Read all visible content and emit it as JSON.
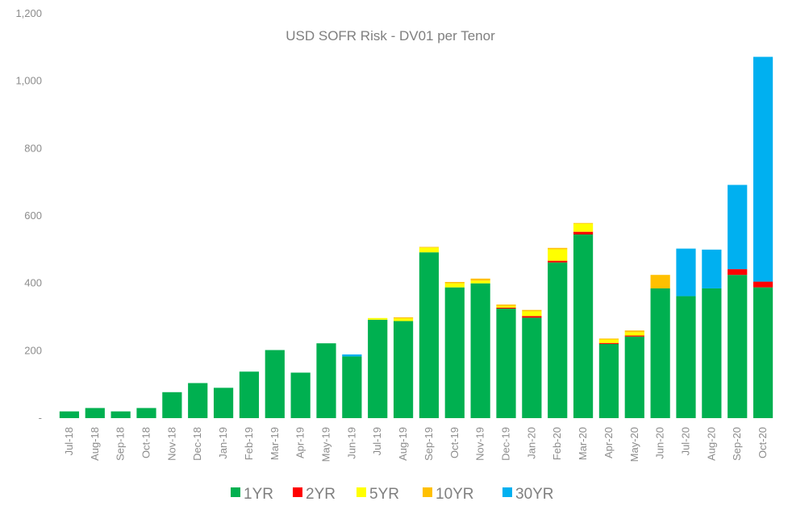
{
  "chart_data": {
    "type": "bar",
    "stacked": true,
    "title": "USD SOFR Risk - DV01 per Tenor",
    "xlabel": "",
    "ylabel": "",
    "ylim": [
      0,
      1200
    ],
    "yticks": [
      0,
      200,
      400,
      600,
      800,
      1000,
      1200
    ],
    "ytick_labels": [
      "-",
      "200",
      "400",
      "600",
      "800",
      "1,000",
      "1,200"
    ],
    "grid": false,
    "legend_position": "bottom",
    "categories": [
      "Jul-18",
      "Aug-18",
      "Sep-18",
      "Oct-18",
      "Nov-18",
      "Dec-18",
      "Jan-19",
      "Feb-19",
      "Mar-19",
      "Apr-19",
      "May-19",
      "Jun-19",
      "Jul-19",
      "Aug-19",
      "Sep-19",
      "Oct-19",
      "Nov-19",
      "Dec-19",
      "Jan-20",
      "Feb-20",
      "Mar-20",
      "Apr-20",
      "May-20",
      "Jun-20",
      "Jul-20",
      "Aug-20",
      "Sep-20",
      "Oct-20"
    ],
    "series": [
      {
        "name": "1YR",
        "color": "#00b050",
        "values": [
          20,
          30,
          20,
          30,
          77,
          104,
          90,
          138,
          202,
          135,
          222,
          183,
          292,
          288,
          492,
          388,
          400,
          325,
          298,
          462,
          545,
          220,
          242,
          385,
          362,
          385,
          425,
          388
        ]
      },
      {
        "name": "2YR",
        "color": "#ff0000",
        "values": [
          0,
          0,
          0,
          0,
          0,
          0,
          0,
          0,
          0,
          0,
          0,
          0,
          0,
          0,
          0,
          0,
          0,
          3,
          5,
          5,
          8,
          3,
          3,
          0,
          0,
          0,
          17,
          17
        ]
      },
      {
        "name": "5YR",
        "color": "#ffff00",
        "values": [
          0,
          0,
          0,
          0,
          0,
          0,
          0,
          0,
          0,
          0,
          0,
          0,
          5,
          8,
          14,
          12,
          8,
          5,
          14,
          34,
          24,
          10,
          10,
          0,
          0,
          0,
          0,
          0
        ]
      },
      {
        "name": "10YR",
        "color": "#ffc000",
        "values": [
          0,
          0,
          0,
          0,
          0,
          0,
          0,
          0,
          0,
          0,
          0,
          0,
          0,
          3,
          2,
          4,
          6,
          4,
          4,
          4,
          2,
          3,
          5,
          40,
          0,
          0,
          0,
          0
        ]
      },
      {
        "name": "30YR",
        "color": "#00b0f0",
        "values": [
          0,
          0,
          0,
          0,
          0,
          0,
          0,
          0,
          0,
          0,
          0,
          6,
          0,
          0,
          0,
          0,
          0,
          0,
          0,
          0,
          0,
          0,
          0,
          0,
          141,
          115,
          250,
          667
        ]
      }
    ]
  }
}
